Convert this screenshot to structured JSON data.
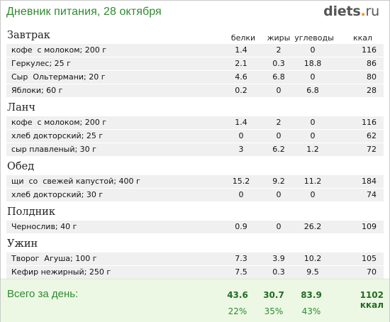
{
  "header": {
    "title": "Дневник питания, 28 октября",
    "logo_main": "diets",
    "logo_dot": ".",
    "logo_tld": "ru"
  },
  "columns": {
    "protein": "белки",
    "fat": "жиры",
    "carbs": "углеводы",
    "kcal": "ккал"
  },
  "meals": [
    {
      "name": "Завтрак",
      "items": [
        {
          "food": "кофе  с молоком; 200 г",
          "protein": "1.4",
          "fat": "2",
          "carbs": "0",
          "kcal": "116"
        },
        {
          "food": "Геркулес; 25 г",
          "protein": "2.1",
          "fat": "0.3",
          "carbs": "18.8",
          "kcal": "86"
        },
        {
          "food": "Сыр  Ольтермани; 20 г",
          "protein": "4.6",
          "fat": "6.8",
          "carbs": "0",
          "kcal": "80"
        },
        {
          "food": "Яблоки; 60 г",
          "protein": "0.2",
          "fat": "0",
          "carbs": "6.8",
          "kcal": "28"
        }
      ]
    },
    {
      "name": "Ланч",
      "items": [
        {
          "food": "кофе  с молоком; 200 г",
          "protein": "1.4",
          "fat": "2",
          "carbs": "0",
          "kcal": "116"
        },
        {
          "food": "хлеб докторский; 25 г",
          "protein": "0",
          "fat": "0",
          "carbs": "0",
          "kcal": "62"
        },
        {
          "food": "сыр плавленый; 30 г",
          "protein": "3",
          "fat": "6.2",
          "carbs": "1.2",
          "kcal": "72"
        }
      ]
    },
    {
      "name": "Обед",
      "items": [
        {
          "food": "щи  со  свежей капустой; 400 г",
          "protein": "15.2",
          "fat": "9.2",
          "carbs": "11.2",
          "kcal": "184"
        },
        {
          "food": "хлеб докторский; 30 г",
          "protein": "0",
          "fat": "0",
          "carbs": "0",
          "kcal": "74"
        }
      ]
    },
    {
      "name": "Полдник",
      "items": [
        {
          "food": "Чернослив; 40 г",
          "protein": "0.9",
          "fat": "0",
          "carbs": "26.2",
          "kcal": "109"
        }
      ]
    },
    {
      "name": "Ужин",
      "items": [
        {
          "food": "Творог  Агуша; 100 г",
          "protein": "7.3",
          "fat": "3.9",
          "carbs": "10.2",
          "kcal": "105"
        },
        {
          "food": "Кефир нежирный; 250 г",
          "protein": "7.5",
          "fat": "0.3",
          "carbs": "9.5",
          "kcal": "70"
        }
      ]
    }
  ],
  "totals": {
    "label": "Всего за день:",
    "protein": "43.6",
    "fat": "30.7",
    "carbs": "83.9",
    "kcal": "1102 ккал",
    "protein_pct": "22%",
    "fat_pct": "35%",
    "carbs_pct": "43%"
  }
}
